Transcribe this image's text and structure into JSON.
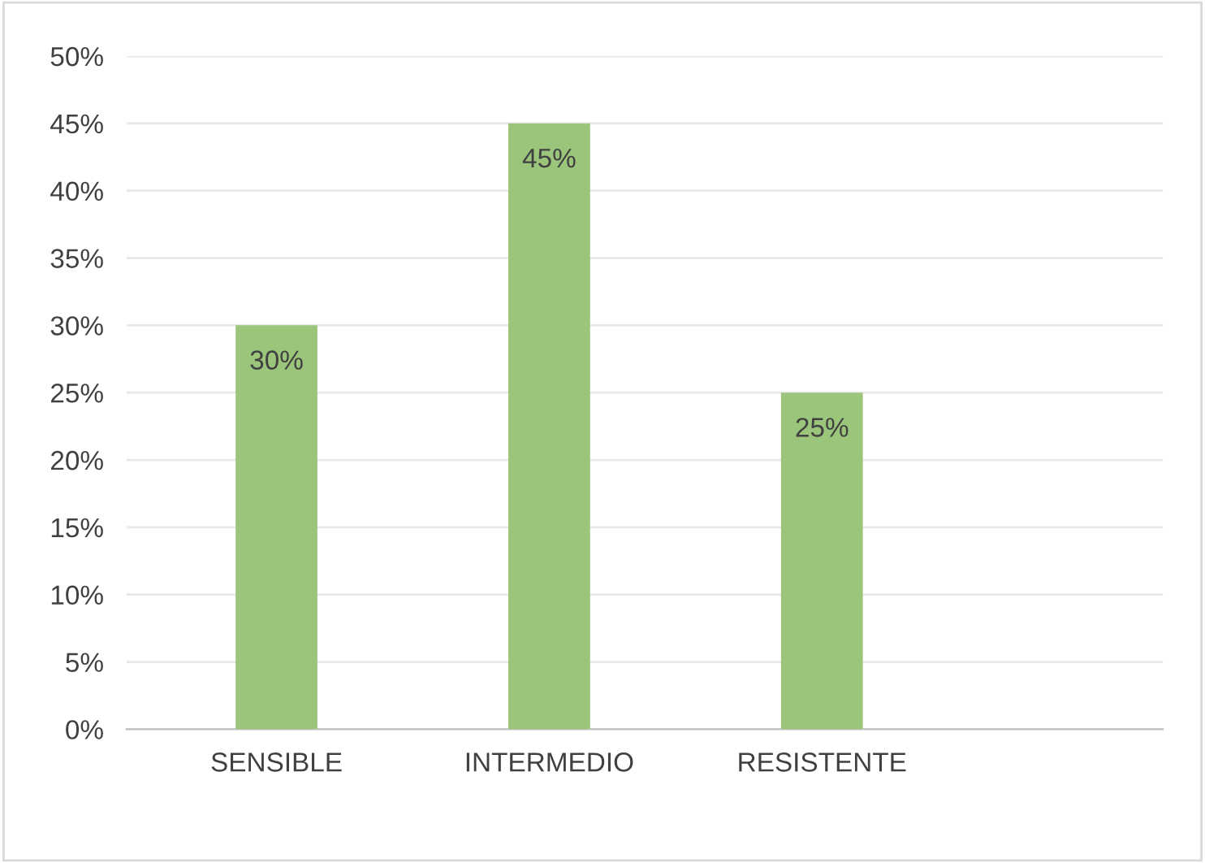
{
  "chart_data": {
    "type": "bar",
    "categories": [
      "SENSIBLE",
      "INTERMEDIO",
      "RESISTENTE"
    ],
    "values": [
      30,
      45,
      25
    ],
    "color": "#9bc57b",
    "value_labels": [
      "30%",
      "45%",
      "25%"
    ],
    "ylim": [
      0,
      50
    ],
    "yticks": [
      {
        "value": 0,
        "label": "0%"
      },
      {
        "value": 5,
        "label": "5%"
      },
      {
        "value": 10,
        "label": "10%"
      },
      {
        "value": 15,
        "label": "15%"
      },
      {
        "value": 20,
        "label": "20%"
      },
      {
        "value": 25,
        "label": "25%"
      },
      {
        "value": 30,
        "label": "30%"
      },
      {
        "value": 35,
        "label": "35%"
      },
      {
        "value": 40,
        "label": "40%"
      },
      {
        "value": 45,
        "label": "45%"
      },
      {
        "value": 50,
        "label": "50%"
      }
    ],
    "grid": "y",
    "legend": false
  }
}
